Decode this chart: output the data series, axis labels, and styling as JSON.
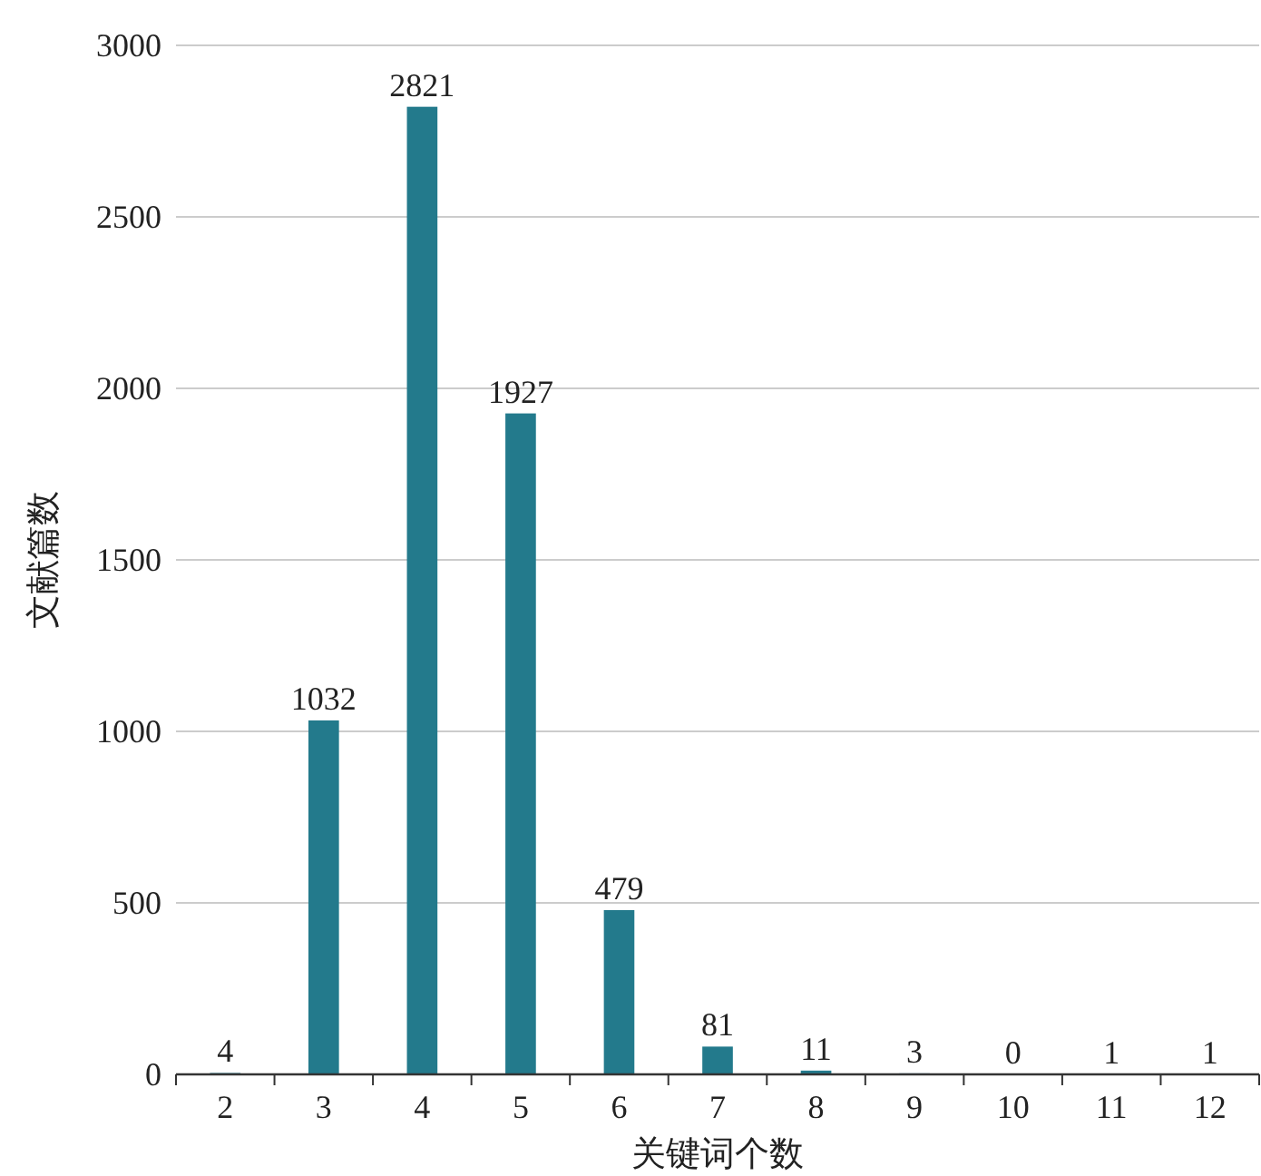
{
  "chart_data": {
    "type": "bar",
    "xlabel": "关键词个数",
    "ylabel": "文献篇数",
    "categories": [
      "2",
      "3",
      "4",
      "5",
      "6",
      "7",
      "8",
      "9",
      "10",
      "11",
      "12"
    ],
    "values": [
      4,
      1032,
      2821,
      1927,
      479,
      81,
      11,
      3,
      0,
      1,
      1
    ],
    "color": "#237a8c",
    "ylim": [
      0,
      3000
    ],
    "yticks": [
      0,
      500,
      1000,
      1500,
      2000,
      2500,
      3000
    ],
    "grid": "y",
    "data_labels": true
  }
}
